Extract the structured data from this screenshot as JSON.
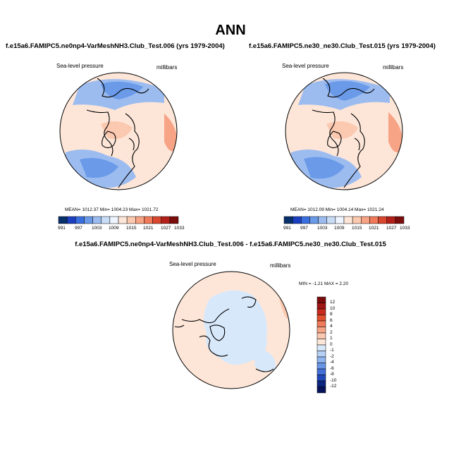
{
  "title": "ANN",
  "panels": [
    {
      "case_title": "f.e15a6.FAMIPC5.ne0np4-VarMeshNH3.Club_Test.006 (yrs 1979-2004)",
      "variable": "Sea-level pressure",
      "units": "millibars",
      "stats": "MEAN= 1012.37   Min= 1004.23   Max= 1021.72",
      "colorbar_labels": [
        "991",
        "997",
        "1003",
        "1009",
        "1015",
        "1021",
        "1027",
        "1033"
      ]
    },
    {
      "case_title": "f.e15a6.FAMIPC5.ne30_ne30.Club_Test.015 (yrs 1979-2004)",
      "variable": "Sea-level pressure",
      "units": "millibars",
      "stats": "MEAN= 1012.09   Min= 1004.14   Max= 1021.24",
      "colorbar_labels": [
        "991",
        "997",
        "1003",
        "1009",
        "1015",
        "1021",
        "1027",
        "1033"
      ]
    }
  ],
  "diff": {
    "case_title": "f.e15a6.FAMIPC5.ne0np4-VarMeshNH3.Club_Test.006 - f.e15a6.FAMIPC5.ne30_ne30.Club_Test.015",
    "variable": "Sea-level pressure",
    "units": "millibars",
    "stats": "MIN =  -1.21  MAX =   2.20",
    "colorbar_labels": [
      "12",
      "10",
      "8",
      "6",
      "4",
      "2",
      "1",
      "0",
      "-1",
      "-2",
      "-4",
      "-6",
      "-8",
      "-10",
      "-12"
    ]
  },
  "colors": {
    "abs_scale": [
      "#08306b",
      "#1c3fbf",
      "#3a6fe0",
      "#6a9ae8",
      "#9cbcf0",
      "#c8dcf6",
      "#eef5ff",
      "#fde6d8",
      "#fbc8b0",
      "#f7a386",
      "#f07a5a",
      "#d9472f",
      "#b3201a",
      "#7a0c0c"
    ],
    "diff_scale": [
      "#7a0c0c",
      "#a01515",
      "#c82a1c",
      "#e0502e",
      "#f07a5a",
      "#f7a386",
      "#fbc8b0",
      "#fde6d8",
      "#d8e8fb",
      "#b7d0f6",
      "#8fb4ee",
      "#6a95e6",
      "#4270d8",
      "#2048b8",
      "#0b2680",
      "#06135a"
    ]
  }
}
